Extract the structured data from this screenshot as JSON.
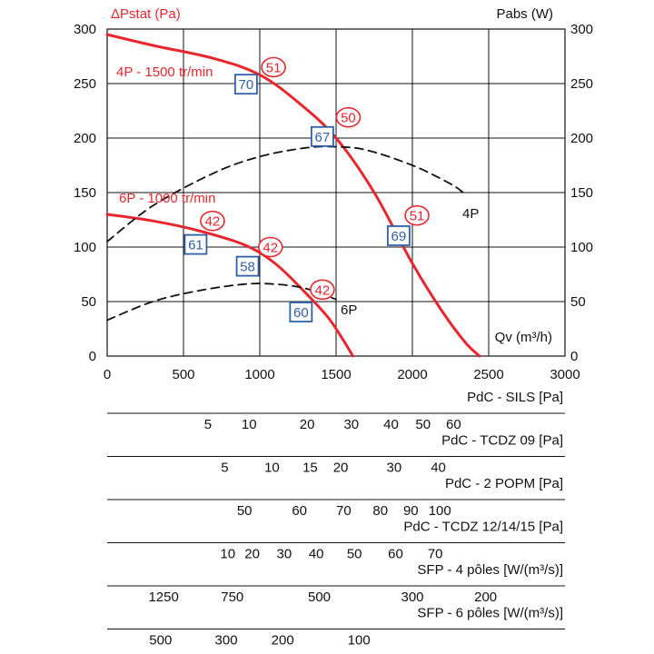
{
  "chart_data": {
    "type": "line",
    "left_axis_label": "ΔPstat (Pa)",
    "right_axis_label": "Pabs (W)",
    "x_axis_label": "Qv (m³/h)",
    "xlim": [
      0,
      3000
    ],
    "ylim": [
      0,
      300
    ],
    "x_ticks": [
      "0",
      "500",
      "1000",
      "1500",
      "2000",
      "2500",
      "3000"
    ],
    "y_ticks": [
      "0",
      "50",
      "100",
      "150",
      "200",
      "250",
      "300"
    ],
    "grid": true,
    "colors": {
      "pressure": "#e8262d",
      "power": "#111111",
      "box": "#2f5fa8"
    },
    "series": [
      {
        "name": "4P - 1500 tr/min",
        "kind": "pressure",
        "x": [
          0,
          300,
          700,
          1000,
          1250,
          1500,
          1750,
          2000,
          2200,
          2350,
          2440
        ],
        "y": [
          295,
          285,
          273,
          258,
          233,
          200,
          150,
          85,
          40,
          12,
          0
        ]
      },
      {
        "name": "6P - 1000 tr/min",
        "kind": "pressure",
        "x": [
          0,
          300,
          600,
          900,
          1100,
          1300,
          1450,
          1550,
          1610
        ],
        "y": [
          130,
          124,
          115,
          102,
          85,
          58,
          35,
          14,
          0
        ]
      },
      {
        "name": "4P",
        "kind": "power",
        "x": [
          0,
          300,
          700,
          1000,
          1300,
          1500,
          1700,
          2000,
          2250,
          2350
        ],
        "y": [
          105,
          138,
          168,
          183,
          191,
          192,
          189,
          175,
          158,
          148
        ]
      },
      {
        "name": "6P",
        "kind": "power",
        "x": [
          0,
          300,
          600,
          900,
          1100,
          1300,
          1500
        ],
        "y": [
          33,
          50,
          60,
          66,
          66,
          62,
          52
        ]
      }
    ],
    "efficiency_markers": [
      {
        "label": "51",
        "x": 1090,
        "y": 265
      },
      {
        "label": "50",
        "x": 1580,
        "y": 219
      },
      {
        "label": "51",
        "x": 2030,
        "y": 129
      },
      {
        "label": "42",
        "x": 690,
        "y": 124
      },
      {
        "label": "42",
        "x": 1070,
        "y": 100
      },
      {
        "label": "42",
        "x": 1410,
        "y": 61
      }
    ],
    "power_markers": [
      {
        "label": "70",
        "x": 910,
        "y": 249
      },
      {
        "label": "67",
        "x": 1410,
        "y": 201
      },
      {
        "label": "69",
        "x": 1910,
        "y": 110
      },
      {
        "label": "61",
        "x": 580,
        "y": 102
      },
      {
        "label": "58",
        "x": 920,
        "y": 82
      },
      {
        "label": "60",
        "x": 1270,
        "y": 40
      }
    ]
  },
  "scales": [
    {
      "title": "PdC - SILS [Pa]",
      "ticks": [
        {
          "label": "5",
          "q": 660
        },
        {
          "label": "10",
          "q": 930
        },
        {
          "label": "20",
          "q": 1310
        },
        {
          "label": "30",
          "q": 1600
        },
        {
          "label": "40",
          "q": 1860
        },
        {
          "label": "50",
          "q": 2070
        },
        {
          "label": "60",
          "q": 2270
        }
      ]
    },
    {
      "title": "PdC - TCDZ 09 [Pa]",
      "ticks": [
        {
          "label": "5",
          "q": 770
        },
        {
          "label": "10",
          "q": 1080
        },
        {
          "label": "15",
          "q": 1330
        },
        {
          "label": "20",
          "q": 1530
        },
        {
          "label": "30",
          "q": 1880
        },
        {
          "label": "40",
          "q": 2170
        }
      ]
    },
    {
      "title": "PdC - 2 POPM [Pa]",
      "ticks": [
        {
          "label": "50",
          "q": 900
        },
        {
          "label": "60",
          "q": 1260
        },
        {
          "label": "70",
          "q": 1550
        },
        {
          "label": "80",
          "q": 1790
        },
        {
          "label": "90",
          "q": 1990
        },
        {
          "label": "100",
          "q": 2180
        }
      ]
    },
    {
      "title": "PdC - TCDZ 12/14/15 [Pa]",
      "ticks": [
        {
          "label": "10",
          "q": 790
        },
        {
          "label": "20",
          "q": 950
        },
        {
          "label": "30",
          "q": 1160
        },
        {
          "label": "40",
          "q": 1370
        },
        {
          "label": "50",
          "q": 1620
        },
        {
          "label": "60",
          "q": 1890
        },
        {
          "label": "70",
          "q": 2150
        }
      ]
    },
    {
      "title": "SFP - 4 pôles [W/(m³/s)]",
      "ticks": [
        {
          "label": "1250",
          "q": 370
        },
        {
          "label": "750",
          "q": 820
        },
        {
          "label": "500",
          "q": 1390
        },
        {
          "label": "300",
          "q": 2000
        },
        {
          "label": "200",
          "q": 2480
        }
      ]
    },
    {
      "title": "SFP - 6 pôles [W/(m³/s)]",
      "ticks": [
        {
          "label": "500",
          "q": 350
        },
        {
          "label": "300",
          "q": 780
        },
        {
          "label": "200",
          "q": 1150
        },
        {
          "label": "100",
          "q": 1650
        }
      ]
    }
  ]
}
